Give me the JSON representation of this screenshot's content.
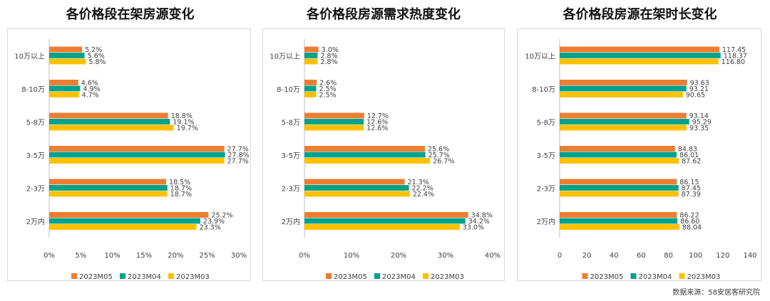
{
  "chart_data": [
    {
      "type": "bar",
      "orientation": "horizontal",
      "title": "各价格段在架房源变化",
      "categories": [
        "10万以上",
        "8-10万",
        "5-8万",
        "3-5万",
        "2-3万",
        "2万内"
      ],
      "series": [
        {
          "name": "2023M05",
          "values": [
            5.2,
            4.6,
            18.8,
            27.7,
            18.5,
            25.2
          ],
          "labels": [
            "5.2%",
            "4.6%",
            "18.8%",
            "27.7%",
            "18.5%",
            "25.2%"
          ]
        },
        {
          "name": "2023M04",
          "values": [
            5.6,
            4.9,
            19.1,
            27.8,
            18.7,
            23.9
          ],
          "labels": [
            "5.6%",
            "4.9%",
            "19.1%",
            "27.8%",
            "18.7%",
            "23.9%"
          ]
        },
        {
          "name": "2023M03",
          "values": [
            5.8,
            4.7,
            19.7,
            27.7,
            18.7,
            23.3
          ],
          "labels": [
            "5.8%",
            "4.7%",
            "19.7%",
            "27.7%",
            "18.7%",
            "23.3%"
          ]
        }
      ],
      "xlim": [
        0,
        30
      ],
      "ticks": [
        "0%",
        "5%",
        "10%",
        "15%",
        "20%",
        "25%",
        "30%"
      ],
      "legend": "bottom"
    },
    {
      "type": "bar",
      "orientation": "horizontal",
      "title": "各价格段房源需求热度变化",
      "categories": [
        "10万以上",
        "8-10万",
        "5-8万",
        "3-5万",
        "2-3万",
        "2万内"
      ],
      "series": [
        {
          "name": "2023M05",
          "values": [
            3.0,
            2.6,
            12.7,
            25.6,
            21.3,
            34.8
          ],
          "labels": [
            "3.0%",
            "2.6%",
            "12.7%",
            "25.6%",
            "21.3%",
            "34.8%"
          ]
        },
        {
          "name": "2023M04",
          "values": [
            2.8,
            2.5,
            12.6,
            25.7,
            22.2,
            34.2
          ],
          "labels": [
            "2.8%",
            "2.5%",
            "12.6%",
            "25.7%",
            "22.2%",
            "34.2%"
          ]
        },
        {
          "name": "2023M03",
          "values": [
            2.8,
            2.5,
            12.6,
            26.7,
            22.4,
            33.0
          ],
          "labels": [
            "2.8%",
            "2.5%",
            "12.6%",
            "26.7%",
            "22.4%",
            "33.0%"
          ]
        }
      ],
      "xlim": [
        0,
        40
      ],
      "ticks": [
        "0%",
        "10%",
        "20%",
        "30%",
        "40%"
      ],
      "legend": "bottom"
    },
    {
      "type": "bar",
      "orientation": "horizontal",
      "title": "各价格段房源在架时长变化",
      "categories": [
        "10万以上",
        "8-10万",
        "5-8万",
        "3-5万",
        "2-3万",
        "2万内"
      ],
      "series": [
        {
          "name": "2023M05",
          "values": [
            117.45,
            93.63,
            93.14,
            84.83,
            86.15,
            86.22
          ],
          "labels": [
            "117.45",
            "93.63",
            "93.14",
            "84.83",
            "86.15",
            "86.22"
          ]
        },
        {
          "name": "2023M04",
          "values": [
            118.37,
            93.21,
            95.29,
            86.01,
            87.45,
            86.6
          ],
          "labels": [
            "118.37",
            "93.21",
            "95.29",
            "86.01",
            "87.45",
            "86.60"
          ]
        },
        {
          "name": "2023M03",
          "values": [
            116.8,
            90.65,
            93.35,
            87.62,
            87.39,
            88.04
          ],
          "labels": [
            "116.80",
            "90.65",
            "93.35",
            "87.62",
            "87.39",
            "88.04"
          ]
        }
      ],
      "xlim": [
        0,
        140
      ],
      "ticks": [
        "0",
        "20",
        "40",
        "60",
        "80",
        "100",
        "120",
        "140"
      ],
      "legend": "bottom"
    }
  ],
  "colors": [
    "#ED7D31",
    "#00A28A",
    "#FFC000"
  ],
  "footer": {
    "source": "数据来源：58安居客研究院"
  }
}
